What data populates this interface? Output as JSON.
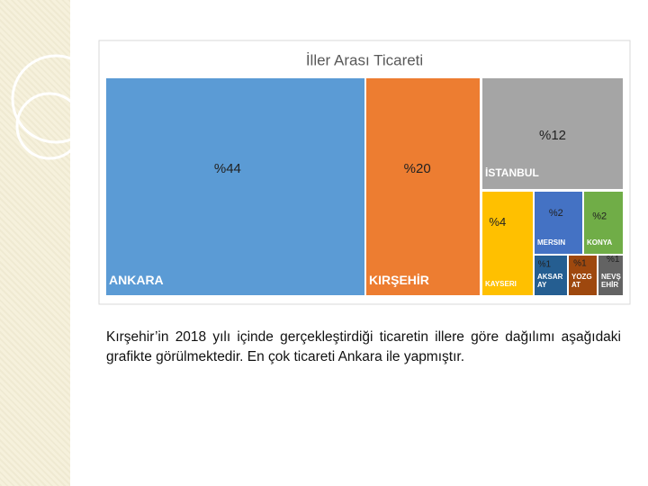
{
  "chart_data": {
    "type": "treemap",
    "title": "İller Arası Ticareti",
    "categories": [
      "ANKARA",
      "KIRŞEHİR",
      "İSTANBUL",
      "KAYSERİ",
      "MERSİN",
      "KONYA",
      "AKSARAY",
      "YOZGAT",
      "NEVŞEHİR"
    ],
    "values": [
      44,
      20,
      12,
      4,
      2,
      2,
      1,
      1,
      1
    ],
    "value_labels": [
      "%44",
      "%20",
      "%12",
      "%4",
      "%2",
      "%2",
      "%1",
      "%1",
      "%1"
    ],
    "colors": [
      "#5b9bd5",
      "#ed7d31",
      "#a5a5a5",
      "#ffc000",
      "#4472c4",
      "#70ad47",
      "#255e91",
      "#9e480e",
      "#636363"
    ]
  },
  "body_text": "Kırşehir’in 2018 yılı içinde gerçekleştirdiği ticaretin illere göre dağılımı aşağıdaki grafikte görülmektedir. En çok ticareti Ankara ile yapmıştır."
}
